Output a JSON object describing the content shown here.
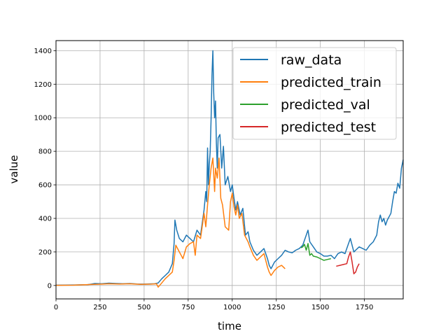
{
  "chart_data": {
    "type": "line",
    "xlabel": "time",
    "ylabel": "value",
    "xlim": [
      0,
      1970
    ],
    "ylim": [
      -80,
      1460
    ],
    "xticks": [
      0,
      250,
      500,
      750,
      1000,
      1250,
      1500,
      1750
    ],
    "yticks": [
      0,
      200,
      400,
      600,
      800,
      1000,
      1200,
      1400
    ],
    "grid": true,
    "legend_position": "top-right",
    "series": [
      {
        "name": "raw_data",
        "color": "#1f77b4",
        "points": [
          [
            0,
            2
          ],
          [
            100,
            3
          ],
          [
            180,
            5
          ],
          [
            200,
            8
          ],
          [
            220,
            12
          ],
          [
            260,
            10
          ],
          [
            300,
            14
          ],
          [
            340,
            12
          ],
          [
            380,
            10
          ],
          [
            420,
            12
          ],
          [
            460,
            9
          ],
          [
            500,
            8
          ],
          [
            560,
            10
          ],
          [
            580,
            15
          ],
          [
            600,
            40
          ],
          [
            620,
            60
          ],
          [
            640,
            80
          ],
          [
            660,
            130
          ],
          [
            670,
            250
          ],
          [
            675,
            390
          ],
          [
            685,
            330
          ],
          [
            700,
            280
          ],
          [
            720,
            260
          ],
          [
            740,
            300
          ],
          [
            760,
            280
          ],
          [
            780,
            260
          ],
          [
            800,
            330
          ],
          [
            820,
            300
          ],
          [
            840,
            450
          ],
          [
            850,
            560
          ],
          [
            855,
            500
          ],
          [
            860,
            820
          ],
          [
            865,
            600
          ],
          [
            870,
            720
          ],
          [
            875,
            800
          ],
          [
            880,
            1000
          ],
          [
            885,
            1250
          ],
          [
            890,
            1400
          ],
          [
            895,
            1150
          ],
          [
            900,
            1000
          ],
          [
            905,
            1100
          ],
          [
            910,
            850
          ],
          [
            915,
            700
          ],
          [
            920,
            880
          ],
          [
            930,
            900
          ],
          [
            940,
            700
          ],
          [
            950,
            830
          ],
          [
            960,
            600
          ],
          [
            975,
            650
          ],
          [
            990,
            560
          ],
          [
            1000,
            600
          ],
          [
            1010,
            520
          ],
          [
            1020,
            450
          ],
          [
            1030,
            500
          ],
          [
            1045,
            420
          ],
          [
            1060,
            460
          ],
          [
            1075,
            300
          ],
          [
            1090,
            320
          ],
          [
            1100,
            260
          ],
          [
            1120,
            210
          ],
          [
            1140,
            180
          ],
          [
            1160,
            200
          ],
          [
            1180,
            220
          ],
          [
            1200,
            160
          ],
          [
            1210,
            120
          ],
          [
            1220,
            100
          ],
          [
            1240,
            140
          ],
          [
            1260,
            160
          ],
          [
            1280,
            180
          ],
          [
            1300,
            210
          ],
          [
            1320,
            200
          ],
          [
            1340,
            195
          ],
          [
            1360,
            210
          ],
          [
            1380,
            220
          ],
          [
            1400,
            240
          ],
          [
            1420,
            300
          ],
          [
            1430,
            330
          ],
          [
            1440,
            260
          ],
          [
            1460,
            230
          ],
          [
            1480,
            200
          ],
          [
            1500,
            190
          ],
          [
            1520,
            175
          ],
          [
            1540,
            175
          ],
          [
            1560,
            180
          ],
          [
            1580,
            160
          ],
          [
            1600,
            190
          ],
          [
            1620,
            200
          ],
          [
            1640,
            190
          ],
          [
            1660,
            250
          ],
          [
            1670,
            280
          ],
          [
            1680,
            240
          ],
          [
            1690,
            200
          ],
          [
            1700,
            210
          ],
          [
            1720,
            230
          ],
          [
            1740,
            220
          ],
          [
            1760,
            210
          ],
          [
            1780,
            240
          ],
          [
            1800,
            260
          ],
          [
            1820,
            300
          ],
          [
            1830,
            380
          ],
          [
            1840,
            420
          ],
          [
            1850,
            380
          ],
          [
            1860,
            400
          ],
          [
            1870,
            360
          ],
          [
            1880,
            390
          ],
          [
            1900,
            430
          ],
          [
            1910,
            500
          ],
          [
            1920,
            560
          ],
          [
            1930,
            550
          ],
          [
            1940,
            610
          ],
          [
            1950,
            580
          ],
          [
            1960,
            700
          ],
          [
            1970,
            750
          ]
        ]
      },
      {
        "name": "predicted_train",
        "color": "#ff7f0e",
        "points": [
          [
            0,
            1
          ],
          [
            100,
            2
          ],
          [
            200,
            6
          ],
          [
            260,
            8
          ],
          [
            300,
            10
          ],
          [
            360,
            9
          ],
          [
            420,
            10
          ],
          [
            480,
            7
          ],
          [
            540,
            8
          ],
          [
            570,
            10
          ],
          [
            580,
            -10
          ],
          [
            600,
            15
          ],
          [
            620,
            40
          ],
          [
            640,
            60
          ],
          [
            660,
            80
          ],
          [
            670,
            150
          ],
          [
            680,
            240
          ],
          [
            700,
            200
          ],
          [
            710,
            180
          ],
          [
            720,
            160
          ],
          [
            740,
            230
          ],
          [
            760,
            250
          ],
          [
            780,
            260
          ],
          [
            790,
            180
          ],
          [
            800,
            300
          ],
          [
            820,
            280
          ],
          [
            840,
            430
          ],
          [
            850,
            350
          ],
          [
            860,
            480
          ],
          [
            870,
            600
          ],
          [
            880,
            700
          ],
          [
            890,
            760
          ],
          [
            900,
            560
          ],
          [
            905,
            700
          ],
          [
            915,
            640
          ],
          [
            925,
            760
          ],
          [
            935,
            520
          ],
          [
            945,
            480
          ],
          [
            960,
            350
          ],
          [
            980,
            330
          ],
          [
            990,
            500
          ],
          [
            1000,
            550
          ],
          [
            1010,
            470
          ],
          [
            1020,
            420
          ],
          [
            1030,
            480
          ],
          [
            1040,
            400
          ],
          [
            1055,
            430
          ],
          [
            1070,
            300
          ],
          [
            1090,
            260
          ],
          [
            1100,
            230
          ],
          [
            1120,
            180
          ],
          [
            1140,
            150
          ],
          [
            1160,
            170
          ],
          [
            1180,
            190
          ],
          [
            1200,
            110
          ],
          [
            1210,
            80
          ],
          [
            1220,
            60
          ],
          [
            1240,
            90
          ],
          [
            1260,
            110
          ],
          [
            1280,
            120
          ],
          [
            1300,
            100
          ]
        ]
      },
      {
        "name": "predicted_val",
        "color": "#2ca02c",
        "points": [
          [
            1390,
            225
          ],
          [
            1400,
            230
          ],
          [
            1410,
            245
          ],
          [
            1420,
            210
          ],
          [
            1430,
            250
          ],
          [
            1440,
            180
          ],
          [
            1450,
            190
          ],
          [
            1460,
            175
          ],
          [
            1480,
            170
          ],
          [
            1500,
            160
          ],
          [
            1520,
            150
          ],
          [
            1540,
            155
          ],
          [
            1560,
            160
          ]
        ]
      },
      {
        "name": "predicted_test",
        "color": "#d62728",
        "points": [
          [
            1590,
            115
          ],
          [
            1610,
            120
          ],
          [
            1630,
            125
          ],
          [
            1650,
            130
          ],
          [
            1660,
            170
          ],
          [
            1670,
            200
          ],
          [
            1680,
            140
          ],
          [
            1690,
            70
          ],
          [
            1700,
            80
          ],
          [
            1710,
            110
          ],
          [
            1720,
            130
          ]
        ]
      }
    ]
  }
}
